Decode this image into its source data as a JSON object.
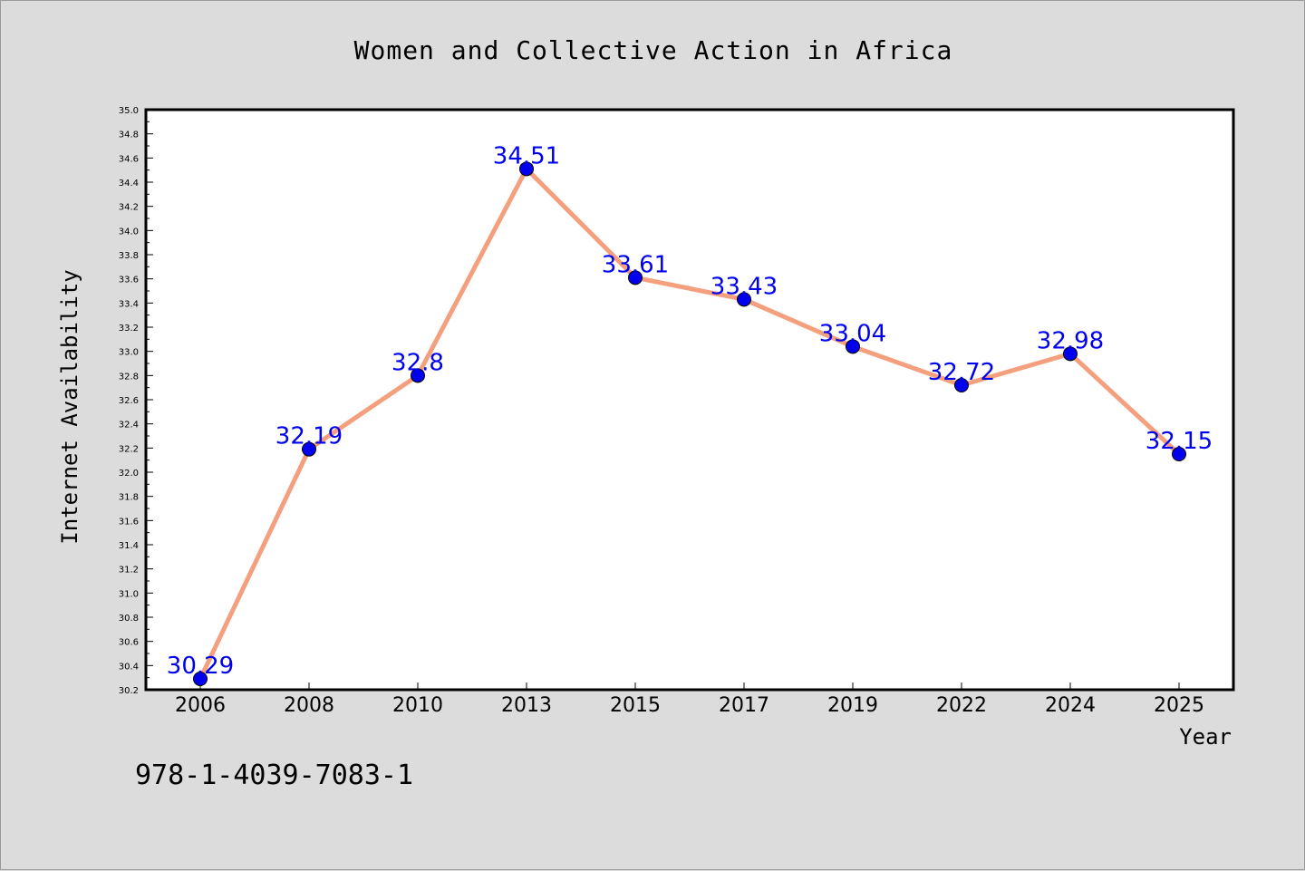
{
  "chart_data": {
    "type": "line",
    "title": "Women and Collective Action in Africa",
    "xlabel": "Year",
    "ylabel": "Internet Availability",
    "categories": [
      "2006",
      "2008",
      "2010",
      "2013",
      "2015",
      "2017",
      "2019",
      "2022",
      "2024",
      "2025"
    ],
    "series": [
      {
        "values": [
          30.29,
          32.19,
          32.8,
          34.51,
          33.61,
          33.43,
          33.04,
          32.72,
          32.98,
          32.15
        ],
        "labels": [
          "30.29",
          "32.19",
          "32.8",
          "34.51",
          "33.61",
          "33.43",
          "33.04",
          "32.72",
          "32.98",
          "32.15"
        ],
        "line_color": "#f4a07e",
        "marker_color": "#0000ee",
        "label_color": "#0000ee"
      }
    ],
    "ylim": [
      30.2,
      35.0
    ],
    "yticks": [
      "30.2",
      "30.4",
      "30.6",
      "30.8",
      "31.0",
      "31.2",
      "31.4",
      "31.6",
      "31.8",
      "32.0",
      "32.2",
      "32.4",
      "32.6",
      "32.8",
      "33.0",
      "33.2",
      "33.4",
      "33.6",
      "33.8",
      "34.0",
      "34.2",
      "34.4",
      "34.6",
      "34.8",
      "35.0"
    ],
    "grid": false,
    "background_color": "#dcdcdc",
    "plot_background_color": "#ffffff"
  },
  "footer_text": "978-1-4039-7083-1"
}
